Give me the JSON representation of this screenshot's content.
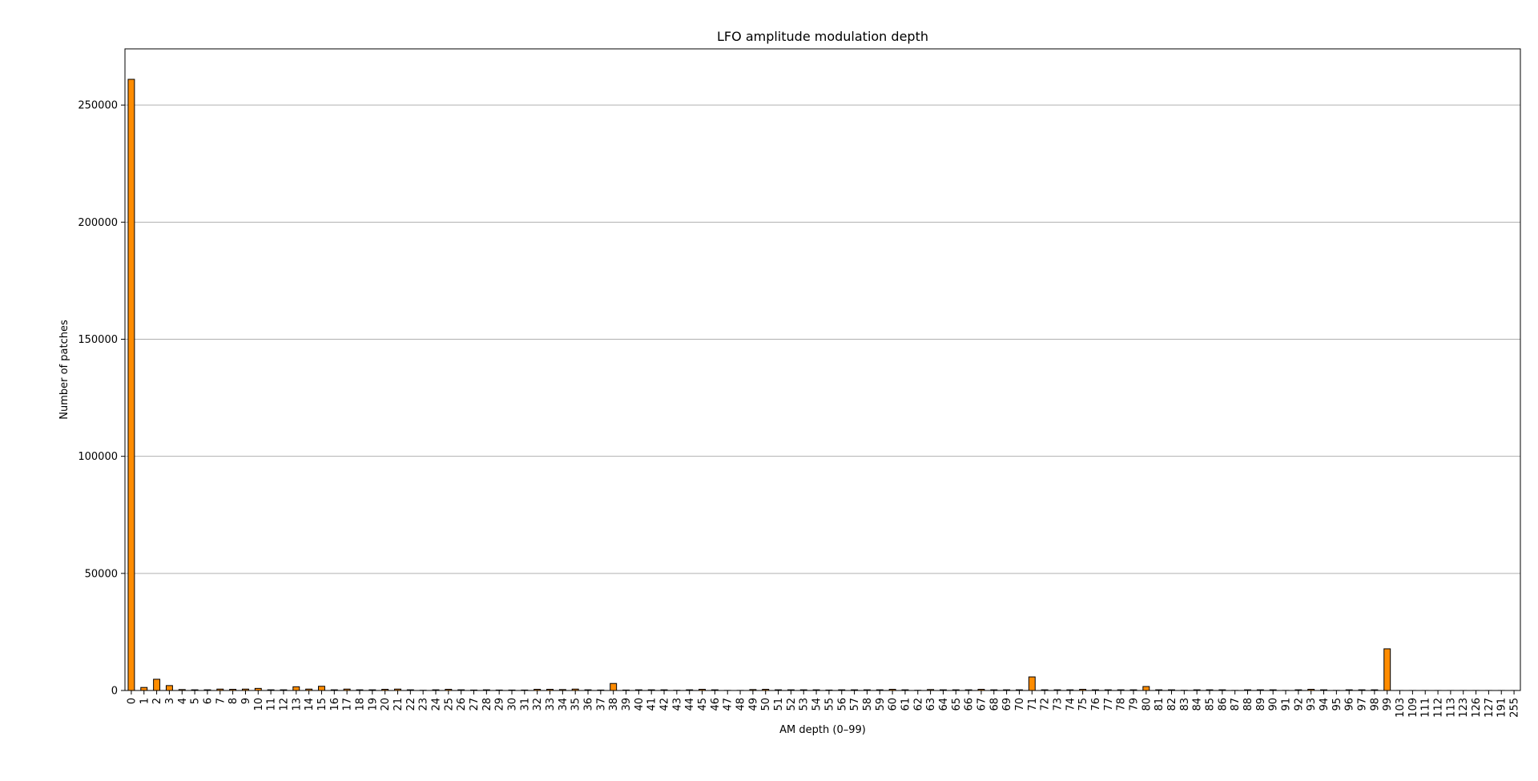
{
  "chart_data": {
    "type": "bar",
    "title": "LFO amplitude modulation depth",
    "xlabel": "AM depth (0–99)",
    "ylabel": "Number of patches",
    "ylim": [
      0,
      274000
    ],
    "yticks": [
      0,
      50000,
      100000,
      150000,
      200000,
      250000
    ],
    "grid": "y",
    "bar_color": "#ff8c00",
    "edge_color": "#000000",
    "categories": [
      "0",
      "1",
      "2",
      "3",
      "4",
      "5",
      "6",
      "7",
      "8",
      "9",
      "10",
      "11",
      "12",
      "13",
      "14",
      "15",
      "16",
      "17",
      "18",
      "19",
      "20",
      "21",
      "22",
      "23",
      "24",
      "25",
      "26",
      "27",
      "28",
      "29",
      "30",
      "31",
      "32",
      "33",
      "34",
      "35",
      "36",
      "37",
      "38",
      "39",
      "40",
      "41",
      "42",
      "43",
      "44",
      "45",
      "46",
      "47",
      "48",
      "49",
      "50",
      "51",
      "52",
      "53",
      "54",
      "55",
      "56",
      "57",
      "58",
      "59",
      "60",
      "61",
      "62",
      "63",
      "64",
      "65",
      "66",
      "67",
      "68",
      "69",
      "70",
      "71",
      "72",
      "73",
      "74",
      "75",
      "76",
      "77",
      "78",
      "79",
      "80",
      "81",
      "82",
      "83",
      "84",
      "85",
      "86",
      "87",
      "88",
      "89",
      "90",
      "91",
      "92",
      "93",
      "94",
      "95",
      "96",
      "97",
      "98",
      "99",
      "103",
      "109",
      "111",
      "112",
      "113",
      "123",
      "126",
      "127",
      "191",
      "255"
    ],
    "values": [
      261000,
      1300,
      4800,
      2100,
      400,
      300,
      300,
      600,
      500,
      600,
      900,
      300,
      300,
      1600,
      600,
      1800,
      300,
      600,
      300,
      300,
      500,
      600,
      300,
      100,
      300,
      500,
      300,
      200,
      300,
      200,
      200,
      200,
      500,
      500,
      400,
      600,
      300,
      200,
      3000,
      200,
      300,
      300,
      300,
      100,
      300,
      500,
      300,
      50,
      50,
      400,
      500,
      300,
      300,
      300,
      300,
      200,
      300,
      300,
      300,
      300,
      500,
      300,
      100,
      400,
      300,
      300,
      300,
      500,
      300,
      300,
      300,
      5800,
      300,
      300,
      300,
      500,
      300,
      300,
      300,
      300,
      1700,
      300,
      300,
      100,
      300,
      300,
      300,
      50,
      300,
      300,
      300,
      50,
      300,
      500,
      300,
      50,
      300,
      300,
      300,
      17800,
      20,
      20,
      20,
      20,
      20,
      20,
      20,
      20,
      20,
      20
    ]
  }
}
